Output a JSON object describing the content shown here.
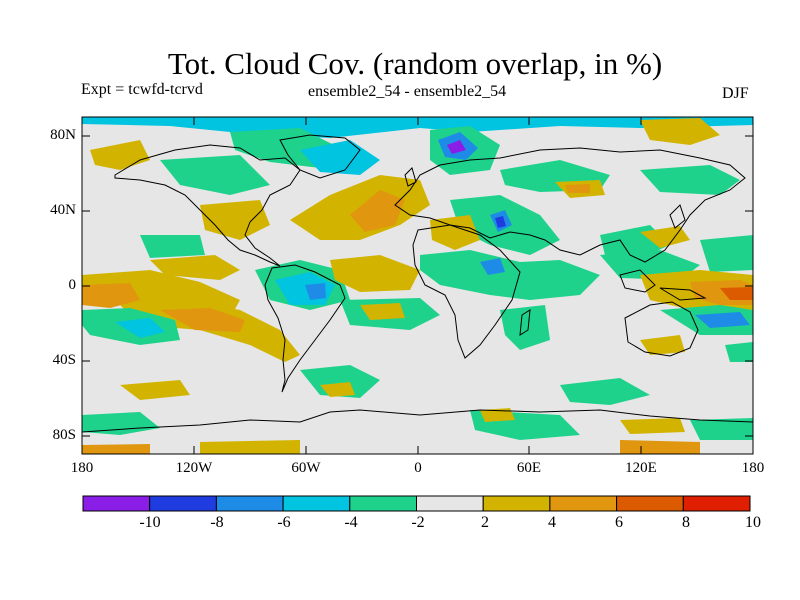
{
  "header": {
    "title": "Tot. Cloud Cov. (random overlap, in %)",
    "experiment": "Expt = tcwfd-tcrvd",
    "comparison": "ensemble2_54 - ensemble2_54",
    "season": "DJF"
  },
  "map": {
    "projection": "equirectangular",
    "lon_range": [
      -180,
      180
    ],
    "lat_range": [
      -90,
      90
    ],
    "background_class": "-2 to 2",
    "lat_ticks": [
      {
        "value": 80,
        "label": "80N"
      },
      {
        "value": 40,
        "label": "40N"
      },
      {
        "value": 0,
        "label": "0"
      },
      {
        "value": -40,
        "label": "40S"
      },
      {
        "value": -80,
        "label": "80S"
      }
    ],
    "lon_ticks": [
      {
        "value": -180,
        "label": "180"
      },
      {
        "value": -120,
        "label": "120W"
      },
      {
        "value": -60,
        "label": "60W"
      },
      {
        "value": 0,
        "label": "0"
      },
      {
        "value": 60,
        "label": "60E"
      },
      {
        "value": 120,
        "label": "120E"
      },
      {
        "value": 180,
        "label": "180"
      }
    ]
  },
  "colorbar": {
    "colors": [
      "#8a1ee6",
      "#1e3ce0",
      "#1e8ce6",
      "#00c4e0",
      "#1ed28c",
      "#e6e6e6",
      "#d2b400",
      "#e0960f",
      "#dc5a00",
      "#e01e00"
    ],
    "tick_labels": [
      "-10",
      "-8",
      "-6",
      "-4",
      "-2",
      "2",
      "4",
      "6",
      "8",
      "10"
    ]
  }
}
